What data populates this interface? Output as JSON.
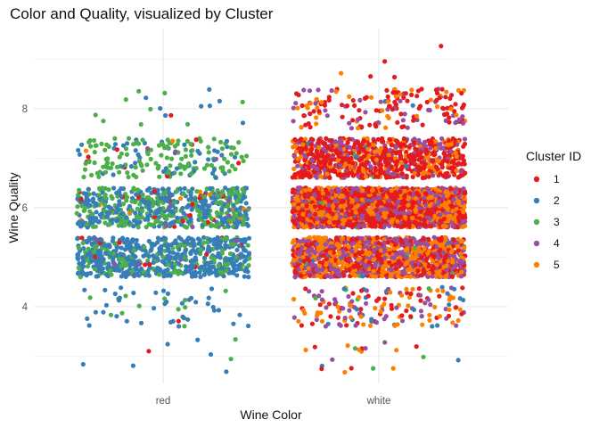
{
  "chart_data": {
    "type": "scatter",
    "title": "Color and Quality, visualized by Cluster",
    "xlabel": "Wine Color",
    "ylabel": "Wine Quality",
    "categories": [
      "red",
      "white"
    ],
    "ylim": [
      2.45,
      9.6
    ],
    "yticks": [
      4,
      6,
      8
    ],
    "jitter": {
      "x": 0.4,
      "y": 0.4
    },
    "grid": true,
    "legend": {
      "title": "Cluster ID",
      "position": "right",
      "entries": [
        {
          "label": "1",
          "color": "#E41A1C"
        },
        {
          "label": "2",
          "color": "#377EB8"
        },
        {
          "label": "3",
          "color": "#4DAF4A"
        },
        {
          "label": "4",
          "color": "#984EA3"
        },
        {
          "label": "5",
          "color": "#FF7F00"
        }
      ]
    },
    "groups": [
      {
        "x": "red",
        "quality": 3,
        "counts": {
          "1": 1,
          "2": 6,
          "3": 2,
          "4": 0,
          "5": 0
        }
      },
      {
        "x": "red",
        "quality": 4,
        "counts": {
          "1": 1,
          "2": 40,
          "3": 12,
          "4": 0,
          "5": 0
        }
      },
      {
        "x": "red",
        "quality": 5,
        "counts": {
          "1": 12,
          "2": 500,
          "3": 160,
          "4": 8,
          "5": 0
        }
      },
      {
        "x": "red",
        "quality": 6,
        "counts": {
          "1": 25,
          "2": 330,
          "3": 260,
          "4": 12,
          "5": 10
        }
      },
      {
        "x": "red",
        "quality": 7,
        "counts": {
          "1": 8,
          "2": 50,
          "3": 135,
          "4": 4,
          "5": 2
        }
      },
      {
        "x": "red",
        "quality": 8,
        "counts": {
          "1": 1,
          "2": 8,
          "3": 9,
          "4": 0,
          "5": 0
        }
      },
      {
        "x": "white",
        "quality": 3,
        "counts": {
          "1": 5,
          "2": 2,
          "3": 3,
          "4": 3,
          "5": 7
        }
      },
      {
        "x": "white",
        "quality": 4,
        "counts": {
          "1": 40,
          "2": 20,
          "3": 5,
          "4": 45,
          "5": 50
        }
      },
      {
        "x": "white",
        "quality": 5,
        "counts": {
          "1": 420,
          "2": 15,
          "3": 15,
          "4": 460,
          "5": 550
        }
      },
      {
        "x": "white",
        "quality": 6,
        "counts": {
          "1": 1000,
          "2": 10,
          "3": 5,
          "4": 500,
          "5": 690
        }
      },
      {
        "x": "white",
        "quality": 7,
        "counts": {
          "1": 520,
          "2": 8,
          "3": 3,
          "4": 170,
          "5": 180
        }
      },
      {
        "x": "white",
        "quality": 8,
        "counts": {
          "1": 95,
          "2": 2,
          "3": 0,
          "4": 40,
          "5": 38
        }
      },
      {
        "x": "white",
        "quality": 9,
        "counts": {
          "1": 4,
          "2": 0,
          "3": 0,
          "4": 0,
          "5": 1
        }
      }
    ]
  }
}
